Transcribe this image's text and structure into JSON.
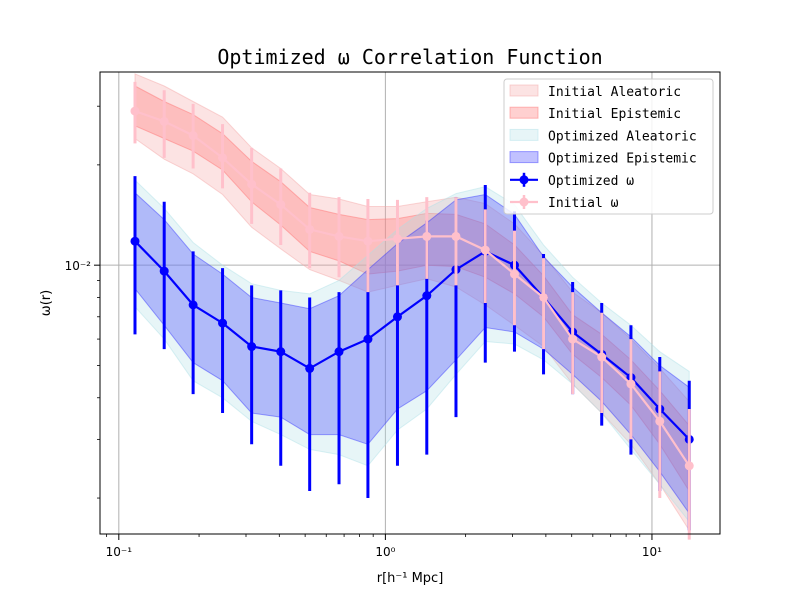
{
  "chart_data": {
    "type": "line",
    "title": "Optimized ω Correlation Function",
    "xlabel": "r[h⁻¹ Mpc]",
    "ylabel": "ω(r)",
    "xscale": "log",
    "yscale": "log",
    "xlim": [
      0.085,
      18
    ],
    "ylim": [
      0.00156,
      0.038
    ],
    "x_ticks": [
      {
        "value": 0.1,
        "label": "10⁻¹"
      },
      {
        "value": 1,
        "label": "10⁰"
      },
      {
        "value": 10,
        "label": "10¹"
      }
    ],
    "y_ticks": [
      {
        "value": 0.01,
        "label": "10⁻²"
      }
    ],
    "grid": true,
    "legend_position": "top-right",
    "x": [
      0.115,
      0.148,
      0.19,
      0.245,
      0.315,
      0.405,
      0.52,
      0.67,
      0.86,
      1.11,
      1.43,
      1.84,
      2.37,
      3.05,
      3.92,
      5.04,
      6.48,
      8.34,
      10.7,
      13.8
    ],
    "series": [
      {
        "name": "Optimized ω",
        "color": "#0000ff",
        "values": [
          0.0118,
          0.0096,
          0.0076,
          0.0067,
          0.0057,
          0.0055,
          0.0049,
          0.0055,
          0.006,
          0.007,
          0.0081,
          0.0097,
          0.011,
          0.01,
          0.008,
          0.0063,
          0.0054,
          0.0046,
          0.0037,
          0.003
        ],
        "error_low": [
          0.0062,
          0.0056,
          0.0041,
          0.0036,
          0.0029,
          0.0025,
          0.0021,
          0.0022,
          0.002,
          0.0025,
          0.0027,
          0.0035,
          0.0051,
          0.0055,
          0.0047,
          0.0041,
          0.0033,
          0.0027,
          0.0021,
          0.0016
        ],
        "error_high": [
          0.0185,
          0.0155,
          0.011,
          0.0098,
          0.0087,
          0.0084,
          0.008,
          0.0083,
          0.0095,
          0.0118,
          0.0136,
          0.016,
          0.0174,
          0.0145,
          0.0108,
          0.0089,
          0.0077,
          0.0066,
          0.0053,
          0.0045
        ]
      },
      {
        "name": "Initial ω",
        "color": "#ffc0cb",
        "values": [
          0.029,
          0.027,
          0.0245,
          0.021,
          0.0175,
          0.0152,
          0.0128,
          0.0122,
          0.0118,
          0.012,
          0.0122,
          0.0122,
          0.0111,
          0.0094,
          0.008,
          0.006,
          0.0053,
          0.0044,
          0.0034,
          0.0025
        ],
        "error_low": [
          0.0232,
          0.021,
          0.0195,
          0.017,
          0.0133,
          0.0115,
          0.0098,
          0.0092,
          0.0083,
          0.0087,
          0.0091,
          0.0087,
          0.0077,
          0.0066,
          0.0056,
          0.0041,
          0.0036,
          0.003,
          0.002,
          0.0015
        ],
        "error_high": [
          0.0355,
          0.0335,
          0.0305,
          0.0265,
          0.0225,
          0.0195,
          0.0165,
          0.016,
          0.0158,
          0.0157,
          0.016,
          0.016,
          0.0147,
          0.0127,
          0.0105,
          0.0083,
          0.0072,
          0.006,
          0.0048,
          0.0037
        ]
      }
    ],
    "bands": [
      {
        "name": "Initial Aleatoric",
        "color": "#f4a3a3",
        "opacity": 0.3,
        "lower": [
          0.024,
          0.0208,
          0.0188,
          0.0163,
          0.013,
          0.0112,
          0.0097,
          0.009,
          0.0083,
          0.0087,
          0.0091,
          0.0086,
          0.0076,
          0.0066,
          0.0057,
          0.0044,
          0.0036,
          0.0029,
          0.0022,
          0.0016
        ],
        "upper": [
          0.0375,
          0.0345,
          0.031,
          0.0278,
          0.0225,
          0.0195,
          0.0163,
          0.0158,
          0.015,
          0.015,
          0.0155,
          0.016,
          0.0153,
          0.0133,
          0.0107,
          0.0083,
          0.0072,
          0.006,
          0.0049,
          0.0039
        ]
      },
      {
        "name": "Initial Epistemic",
        "color": "#ff7878",
        "opacity": 0.35,
        "lower": [
          0.0262,
          0.024,
          0.022,
          0.0193,
          0.0155,
          0.0132,
          0.011,
          0.0103,
          0.0094,
          0.0096,
          0.01,
          0.0099,
          0.0092,
          0.0082,
          0.007,
          0.0054,
          0.0046,
          0.0038,
          0.0029,
          0.0021
        ],
        "upper": [
          0.0345,
          0.031,
          0.0283,
          0.0248,
          0.0205,
          0.0178,
          0.0149,
          0.0142,
          0.0137,
          0.0138,
          0.0143,
          0.0142,
          0.0133,
          0.0115,
          0.0093,
          0.0071,
          0.0062,
          0.0052,
          0.0042,
          0.0033
        ]
      },
      {
        "name": "Optimized Aleatoric",
        "color": "#aedfe6",
        "opacity": 0.3,
        "lower": [
          0.0075,
          0.006,
          0.0045,
          0.004,
          0.0034,
          0.0031,
          0.0028,
          0.0027,
          0.0025,
          0.0032,
          0.0037,
          0.0047,
          0.0059,
          0.0058,
          0.0052,
          0.0044,
          0.0036,
          0.0028,
          0.0022,
          0.0017
        ],
        "upper": [
          0.018,
          0.0148,
          0.0117,
          0.01,
          0.0088,
          0.0084,
          0.0082,
          0.009,
          0.0107,
          0.0128,
          0.0148,
          0.0164,
          0.0172,
          0.0152,
          0.0115,
          0.0092,
          0.0077,
          0.0066,
          0.0055,
          0.0048
        ]
      },
      {
        "name": "Optimized Epistemic",
        "color": "#3333ff",
        "opacity": 0.3,
        "lower": [
          0.0085,
          0.0066,
          0.0051,
          0.0045,
          0.0036,
          0.0035,
          0.0031,
          0.0031,
          0.0029,
          0.0037,
          0.0042,
          0.0052,
          0.0065,
          0.0063,
          0.0056,
          0.0047,
          0.0039,
          0.0031,
          0.0024,
          0.0018
        ],
        "upper": [
          0.0165,
          0.0137,
          0.0108,
          0.0094,
          0.008,
          0.0077,
          0.0074,
          0.0081,
          0.0097,
          0.0116,
          0.0134,
          0.0157,
          0.0163,
          0.0142,
          0.0106,
          0.0086,
          0.0072,
          0.0061,
          0.005,
          0.0043
        ]
      }
    ],
    "legend": [
      {
        "label": "Initial Aleatoric",
        "kind": "band",
        "ref": "Initial Aleatoric"
      },
      {
        "label": "Initial Epistemic",
        "kind": "band",
        "ref": "Initial Epistemic"
      },
      {
        "label": "Optimized Aleatoric",
        "kind": "band",
        "ref": "Optimized Aleatoric"
      },
      {
        "label": "Optimized Epistemic",
        "kind": "band",
        "ref": "Optimized Epistemic"
      },
      {
        "label": "Optimized ω",
        "kind": "line",
        "ref": "Optimized ω"
      },
      {
        "label": "Initial ω",
        "kind": "line",
        "ref": "Initial ω"
      }
    ]
  }
}
